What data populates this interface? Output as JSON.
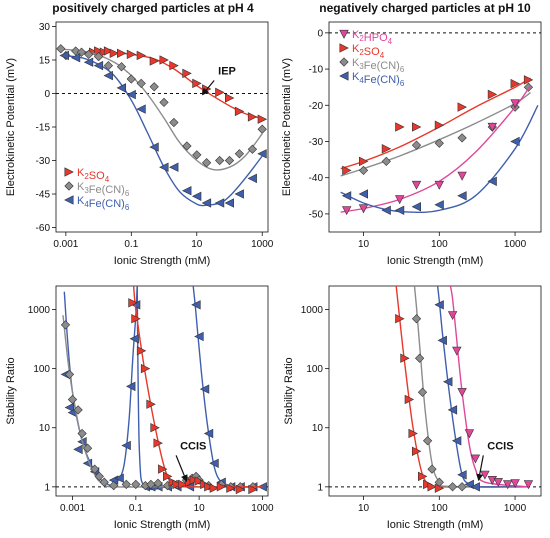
{
  "colors": {
    "K2SO4": "#e8372b",
    "K3FeCN6": "#8c8c8c",
    "K4FeCN6": "#3f5fae",
    "K2HPO4": "#e0479b"
  },
  "chart_data": [
    {
      "id": "tl",
      "type": "scatter",
      "title": "positively charged particles at pH 4",
      "xlabel": "Ionic Strength (mM)",
      "ylabel": "Electrokinetic Potential (mV)",
      "xscale": "log",
      "xlim": [
        0.0005,
        1500
      ],
      "ylim": [
        -62,
        32
      ],
      "xticks": [
        0.001,
        0.1,
        10,
        1000
      ],
      "xticklabels": [
        "0.001",
        "0.1",
        "10",
        "1000"
      ],
      "yticks": [
        30,
        15,
        0,
        -15,
        -30,
        -45,
        -60
      ],
      "yticklabels": [
        "30",
        "15",
        "0",
        "-15",
        "-30",
        "-45",
        "-60"
      ],
      "hline": 0,
      "legend_position": "lower-left",
      "legend": [
        {
          "key": "K2SO4",
          "main": "K",
          "sub1": "2",
          "mid": "SO",
          "sub2": "4",
          "tail": ""
        },
        {
          "key": "K3FeCN6",
          "main": "K",
          "sub1": "3",
          "mid": "Fe(CN)",
          "sub2": "6",
          "tail": ""
        },
        {
          "key": "K4FeCN6",
          "main": "K",
          "sub1": "4",
          "mid": "Fe(CN)",
          "sub2": "6",
          "tail": ""
        }
      ],
      "annotations": [
        {
          "text": "IEP",
          "xy": [
            15,
            -0.5
          ],
          "text_xy": [
            45,
            8.5
          ]
        }
      ],
      "series": [
        {
          "key": "K2SO4",
          "marker": "tri-right",
          "x": [
            0.007,
            0.01,
            0.015,
            0.02,
            0.03,
            0.05,
            0.1,
            0.2,
            0.5,
            1,
            2,
            5,
            10,
            20,
            50,
            100,
            200,
            500,
            1000
          ],
          "y": [
            18.5,
            19,
            18.5,
            19,
            18,
            18,
            17.5,
            17,
            14.5,
            15,
            12.5,
            9,
            4.5,
            2,
            0.5,
            -2,
            -8,
            -10.5,
            -11.5
          ],
          "fit_x": [
            0.005,
            0.02,
            0.1,
            0.5,
            2,
            10,
            30,
            100,
            300,
            1200
          ],
          "fit_y": [
            18.8,
            18.5,
            17.5,
            15.5,
            11,
            3.5,
            -1,
            -5.5,
            -9,
            -11.5
          ]
        },
        {
          "key": "K3FeCN6",
          "marker": "diamond",
          "x": [
            0.0007,
            0.001,
            0.002,
            0.003,
            0.005,
            0.01,
            0.02,
            0.05,
            0.1,
            0.2,
            0.5,
            1,
            2,
            5,
            10,
            20,
            50,
            100,
            200,
            500,
            1000
          ],
          "y": [
            20,
            17,
            19,
            18.5,
            17.5,
            16.5,
            12.5,
            12,
            6.5,
            4.5,
            3,
            -4,
            -13,
            -23.5,
            -27.5,
            -31,
            -30,
            -30,
            -27,
            -25,
            -16
          ],
          "fit_x": [
            0.0005,
            0.005,
            0.03,
            0.1,
            0.3,
            1,
            3,
            10,
            30,
            100,
            300,
            1000
          ],
          "fit_y": [
            20,
            18.5,
            14,
            8,
            0,
            -11,
            -22,
            -30,
            -34,
            -33,
            -28,
            -18
          ]
        },
        {
          "key": "K4FeCN6",
          "marker": "tri-left",
          "x": [
            0.0009,
            0.002,
            0.005,
            0.01,
            0.02,
            0.05,
            0.1,
            0.2,
            0.5,
            1,
            2,
            5,
            10,
            20,
            50,
            100,
            200,
            500,
            1000
          ],
          "y": [
            17,
            16,
            14,
            12.5,
            8,
            2.5,
            -0.5,
            -7,
            -24,
            -33,
            -33,
            -43.5,
            -46,
            -49,
            -49,
            -49,
            -45,
            -38,
            -27
          ],
          "fit_x": [
            0.0007,
            0.003,
            0.01,
            0.03,
            0.1,
            0.3,
            1,
            3,
            10,
            20,
            50,
            100,
            300,
            1000
          ],
          "fit_y": [
            17,
            16,
            13,
            8,
            -3,
            -17,
            -33,
            -44,
            -49.5,
            -50,
            -49,
            -46,
            -38,
            -28
          ]
        }
      ]
    },
    {
      "id": "tr",
      "type": "scatter",
      "title": "negatively charged particles at pH 10",
      "xlabel": "Ionic Strength (mM)",
      "ylabel": "Electrokinetic Potential (mV)",
      "xscale": "log",
      "xlim": [
        3.5,
        2200
      ],
      "ylim": [
        -55,
        3
      ],
      "xticks": [
        10,
        100,
        1000
      ],
      "xticklabels": [
        "10",
        "100",
        "1000"
      ],
      "yticks": [
        0,
        -10,
        -20,
        -30,
        -40,
        -50
      ],
      "yticklabels": [
        "0",
        "-10",
        "-20",
        "-30",
        "-40",
        "-50"
      ],
      "hline": 0,
      "legend_position": "top-left",
      "legend": [
        {
          "key": "K2HPO4",
          "main": "K",
          "sub1": "2",
          "mid": "HPO",
          "sub2": "4",
          "tail": ""
        },
        {
          "key": "K2SO4",
          "main": "K",
          "sub1": "2",
          "mid": "SO",
          "sub2": "4",
          "tail": ""
        },
        {
          "key": "K3FeCN6",
          "main": "K",
          "sub1": "3",
          "mid": "Fe(CN)",
          "sub2": "6",
          "tail": ""
        },
        {
          "key": "K4FeCN6",
          "main": "K",
          "sub1": "4",
          "mid": "Fe(CN)",
          "sub2": "6",
          "tail": ""
        }
      ],
      "annotations": [],
      "series": [
        {
          "key": "K2SO4",
          "marker": "tri-right",
          "x": [
            6,
            10,
            20,
            30,
            50,
            100,
            200,
            500,
            1000,
            1500
          ],
          "y": [
            -38,
            -35.5,
            -32,
            -26,
            -26,
            -25.5,
            -20.5,
            -17,
            -14,
            -13
          ],
          "fit_x": [
            5,
            10,
            30,
            100,
            300,
            1000,
            1600
          ],
          "fit_y": [
            -37.5,
            -35.5,
            -31.5,
            -26,
            -20.5,
            -15,
            -12.5
          ]
        },
        {
          "key": "K3FeCN6",
          "marker": "diamond",
          "x": [
            10,
            20,
            50,
            100,
            200,
            500,
            1000,
            1500
          ],
          "y": [
            -38,
            -35.5,
            -31,
            -30.5,
            -29,
            -26,
            -20.5,
            -15
          ],
          "fit_x": [
            5,
            10,
            30,
            100,
            300,
            1000,
            1600
          ],
          "fit_y": [
            -39.5,
            -37.5,
            -34,
            -29.5,
            -25,
            -19.5,
            -16.5
          ]
        },
        {
          "key": "K2HPO4",
          "marker": "tri-down",
          "x": [
            6,
            10,
            30,
            50,
            100,
            200,
            500,
            1000
          ],
          "y": [
            -49,
            -48.5,
            -46,
            -42,
            -42,
            -39.5,
            -26,
            -19.5
          ],
          "fit_x": [
            5,
            10,
            30,
            100,
            300,
            1000,
            1600
          ],
          "fit_y": [
            -49.5,
            -48.5,
            -46,
            -41,
            -33,
            -20.5,
            -14.5
          ]
        },
        {
          "key": "K4FeCN6",
          "marker": "tri-left",
          "x": [
            6,
            10,
            20,
            30,
            50,
            100,
            200,
            500,
            1000
          ],
          "y": [
            -45,
            -44.5,
            -49,
            -49,
            -48,
            -47.5,
            -45,
            -41,
            -30
          ],
          "fit_x": [
            5,
            10,
            20,
            40,
            100,
            300,
            1000,
            2000
          ],
          "fit_y": [
            -44,
            -47,
            -48.8,
            -49.5,
            -49,
            -45,
            -32,
            -20
          ]
        }
      ]
    },
    {
      "id": "bl",
      "type": "scatter",
      "title": "",
      "xlabel": "Ionic Strength (mM)",
      "ylabel": "Stability Ratio",
      "xscale": "log",
      "yscale": "log",
      "xlim": [
        0.0003,
        1500
      ],
      "ylim": [
        0.7,
        2500
      ],
      "xticks": [
        0.001,
        0.1,
        10,
        1000
      ],
      "xticklabels": [
        "0.001",
        "0.1",
        "10",
        "1000"
      ],
      "yticks": [
        1,
        10,
        100,
        1000
      ],
      "yticklabels": [
        "1",
        "10",
        "100",
        "1000"
      ],
      "hline": 1,
      "legend_position": "none",
      "legend": [],
      "annotations": [
        {
          "text": "CCIS",
          "xy": [
            4,
            1.25
          ],
          "text_xy": [
            2.5,
            4.3
          ]
        }
      ],
      "series": [
        {
          "key": "K4FeCN6",
          "marker": "tri-left",
          "x": [
            0.0006,
            0.0008,
            0.001,
            0.0015,
            0.002,
            0.003,
            0.005,
            0.02,
            0.03,
            0.05,
            0.07,
            0.09,
            0.1,
            0.2,
            0.3,
            0.5,
            1,
            2,
            5,
            8,
            10,
            15,
            20,
            30,
            50,
            100,
            200,
            500,
            1000
          ],
          "y": [
            80,
            22,
            18,
            4.3,
            5.8,
            2.5,
            1.8,
            1.3,
            1.4,
            5,
            50,
            320,
            1200,
            1,
            1,
            1,
            1,
            1,
            1,
            1200,
            350,
            45,
            8,
            2.5,
            1.2,
            1,
            1,
            1,
            1
          ],
          "fit_x": [
            0.00055,
            0.0007,
            0.001,
            0.002,
            0.005,
            0.01,
            0.02,
            0.04,
            0.06,
            0.08,
            0.1,
            0.11
          ],
          "fit_y": [
            2000,
            300,
            40,
            6,
            1.8,
            1.2,
            1.1,
            2,
            12,
            150,
            800,
            2500
          ],
          "fit2_x": [
            0.11,
            0.13,
            0.2,
            1,
            5,
            7
          ],
          "fit2_y": [
            2500,
            4,
            1,
            1,
            1,
            1
          ],
          "fit3_x": [
            6.5,
            7.5,
            9,
            12,
            18,
            30,
            50,
            100,
            1000
          ],
          "fit3_y": [
            2500,
            1200,
            400,
            80,
            12,
            2.2,
            1.2,
            1,
            1
          ]
        },
        {
          "key": "K3FeCN6",
          "marker": "diamond",
          "x": [
            0.0006,
            0.0008,
            0.001,
            0.0015,
            0.002,
            0.003,
            0.005,
            0.007,
            0.01,
            0.02,
            0.05,
            0.1,
            0.2,
            0.3,
            0.5,
            1,
            2,
            4,
            6,
            8,
            10,
            20,
            50,
            100,
            200,
            500
          ],
          "y": [
            550,
            80,
            30,
            20,
            8,
            4.5,
            2,
            1.5,
            1.2,
            1.05,
            1.1,
            1.1,
            1.05,
            1.1,
            1.15,
            1.05,
            1.1,
            1.3,
            1.4,
            1.5,
            1.3,
            1.05,
            1.1,
            1,
            1,
            1
          ],
          "fit_x": [
            0.0005,
            0.0007,
            0.001,
            0.002,
            0.005,
            0.01,
            0.02,
            1,
            1000
          ],
          "fit_y": [
            800,
            150,
            40,
            6,
            1.6,
            1.1,
            1,
            1,
            1
          ]
        },
        {
          "key": "K2SO4",
          "marker": "tri-right",
          "x": [
            0.08,
            0.1,
            0.15,
            0.2,
            0.3,
            0.4,
            0.5,
            0.7,
            1,
            1.5,
            2,
            3,
            5,
            7,
            10,
            15,
            20,
            30,
            50,
            100,
            200,
            500
          ],
          "y": [
            1300,
            700,
            200,
            100,
            25,
            10,
            5.5,
            2,
            1.5,
            1.2,
            1.1,
            1.1,
            1.2,
            1.3,
            1.25,
            1.1,
            1,
            0.95,
            1,
            0.95,
            0.9,
            0.9
          ],
          "fit_x": [
            0.085,
            0.1,
            0.2,
            0.5,
            1,
            2,
            5,
            1000
          ],
          "fit_y": [
            2500,
            1000,
            80,
            6,
            1.5,
            1.05,
            1,
            1
          ]
        }
      ]
    },
    {
      "id": "br",
      "type": "scatter",
      "title": "",
      "xlabel": "Ionic Strength (mM)",
      "ylabel": "Stability Ratio",
      "xscale": "log",
      "yscale": "log",
      "xlim": [
        3.5,
        2200
      ],
      "ylim": [
        0.7,
        2500
      ],
      "xticks": [
        10,
        100,
        1000
      ],
      "xticklabels": [
        "10",
        "100",
        "1000"
      ],
      "yticks": [
        1,
        10,
        100,
        1000
      ],
      "yticklabels": [
        "1",
        "10",
        "100",
        "1000"
      ],
      "hline": 1,
      "legend_position": "none",
      "legend": [],
      "annotations": [
        {
          "text": "CCIS",
          "xy": [
            330,
            1.3
          ],
          "text_xy": [
            430,
            4.3
          ]
        }
      ],
      "series": [
        {
          "key": "K2SO4",
          "marker": "tri-right",
          "x": [
            30,
            35,
            40,
            45,
            50,
            60,
            70,
            80,
            100
          ],
          "y": [
            700,
            150,
            30,
            8,
            4,
            1.5,
            1.1,
            1,
            0.95
          ],
          "fit_x": [
            27,
            30,
            35,
            45,
            60,
            80,
            100,
            1500
          ],
          "fit_y": [
            2500,
            700,
            120,
            10,
            1.6,
            1.05,
            1,
            1
          ]
        },
        {
          "key": "K3FeCN6",
          "marker": "diamond",
          "x": [
            50,
            55,
            60,
            70,
            80,
            100,
            150,
            200
          ],
          "y": [
            700,
            150,
            40,
            6,
            2,
            1.2,
            1,
            1
          ],
          "fit_x": [
            47,
            50,
            55,
            65,
            80,
            100,
            130,
            1500
          ],
          "fit_y": [
            2500,
            1100,
            250,
            20,
            2.5,
            1.2,
            1.02,
            1
          ]
        },
        {
          "key": "K4FeCN6",
          "marker": "tri-left",
          "x": [
            100,
            110,
            130,
            150,
            170,
            200,
            250,
            300
          ],
          "y": [
            1200,
            300,
            60,
            20,
            6,
            1.6,
            1.1,
            1
          ],
          "fit_x": [
            95,
            100,
            110,
            130,
            160,
            200,
            250,
            300,
            1500
          ],
          "fit_y": [
            2500,
            1400,
            400,
            60,
            8,
            1.6,
            1.1,
            1,
            1
          ]
        },
        {
          "key": "K2HPO4",
          "marker": "tri-down",
          "x": [
            150,
            170,
            200,
            250,
            300,
            400,
            500,
            600,
            800,
            1000,
            1500
          ],
          "y": [
            800,
            200,
            40,
            8,
            3,
            1.6,
            1.3,
            1.2,
            1.1,
            1.15,
            1.1
          ],
          "fit_x": [
            140,
            150,
            170,
            200,
            250,
            300,
            400,
            1500
          ],
          "fit_y": [
            2500,
            1500,
            300,
            40,
            5,
            2,
            1.2,
            1
          ]
        }
      ]
    }
  ]
}
